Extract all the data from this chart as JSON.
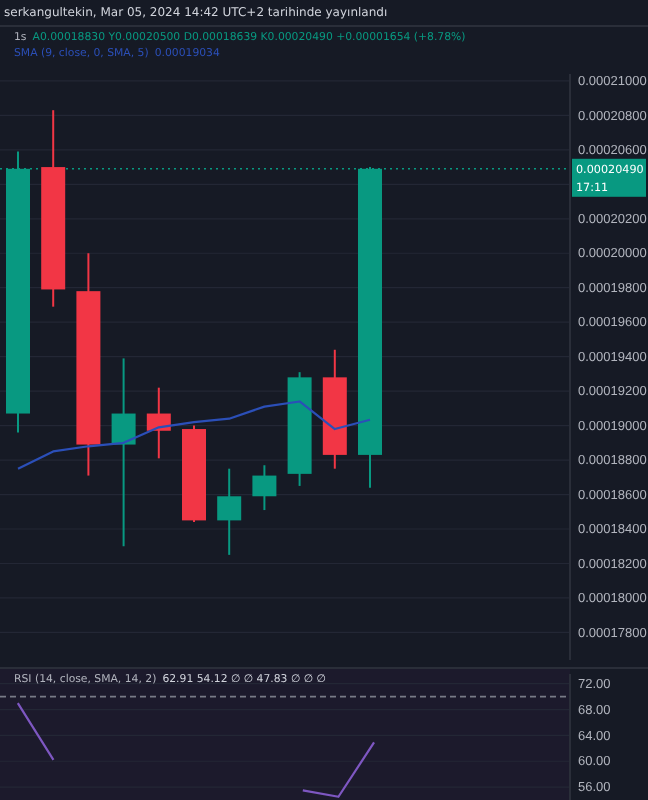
{
  "chart_data": [
    {
      "type": "candlestick",
      "title": "1s",
      "annotations": [
        "serkangultekin, Mar 05, 2024 14:42 UTC+2 tarihinde yayınlandı",
        "A0.00018830 Y0.00020500 D0.00018639 K0.00020490 +0.00001654 (+8.78%)",
        "17:11",
        "0.00019034"
      ],
      "categories": [
        null,
        null,
        null,
        null,
        null,
        null,
        null,
        null,
        null,
        null,
        null
      ],
      "ohlc": [
        [
          0.0001907,
          0.0002059,
          0.0001896,
          0.0002049
        ],
        [
          0.000205,
          0.0002083,
          0.0001969,
          0.0001979
        ],
        [
          0.0001978,
          0.0002,
          0.0001871,
          0.0001889
        ],
        [
          0.0001889,
          0.0001939,
          0.000183,
          0.0001907
        ],
        [
          0.0001907,
          0.0001922,
          0.0001881,
          0.0001897
        ],
        [
          0.0001898,
          0.00019,
          0.0001844,
          0.0001845
        ],
        [
          0.0001845,
          0.0001875,
          0.0001825,
          0.0001859
        ],
        [
          0.0001859,
          0.0001877,
          0.0001851,
          0.0001871
        ],
        [
          0.0001872,
          0.0001931,
          0.0001865,
          0.0001928
        ],
        [
          0.0001928,
          0.0001944,
          0.0001875,
          0.0001883
        ],
        [
          0.0001883,
          0.000205,
          0.00018639,
          0.0002049
        ]
      ],
      "colors": [
        "#089981",
        "#f23645",
        "#f23645",
        "#089981",
        "#f23645",
        "#f23645",
        "#089981",
        "#089981",
        "#089981",
        "#f23645",
        "#089981"
      ],
      "series": [
        {
          "type": "line",
          "name": "SMA (9, close, 0, SMA, 5)",
          "color": "#2b4fb8",
          "values": [
            0.0001875,
            0.0001885,
            0.0001888,
            0.000189,
            0.0001899,
            0.0001902,
            0.0001904,
            0.0001911,
            0.0001914,
            0.0001898,
            0.00019034
          ]
        }
      ],
      "ylim": [
        0.0001764,
        0.0002104
      ],
      "yticks": [
        {
          "value": 0.000178,
          "label": "0.00017800"
        },
        {
          "value": 0.00018,
          "label": "0.00018000"
        },
        {
          "value": 0.000182,
          "label": "0.00018200"
        },
        {
          "value": 0.000184,
          "label": "0.00018400"
        },
        {
          "value": 0.000186,
          "label": "0.00018600"
        },
        {
          "value": 0.000188,
          "label": "0.00018800"
        },
        {
          "value": 0.00019,
          "label": "0.00019000"
        },
        {
          "value": 0.000192,
          "label": "0.00019200"
        },
        {
          "value": 0.000194,
          "label": "0.00019400"
        },
        {
          "value": 0.000196,
          "label": "0.00019600"
        },
        {
          "value": 0.000198,
          "label": "0.00019800"
        },
        {
          "value": 0.0002,
          "label": "0.00020000"
        },
        {
          "value": 0.000202,
          "label": "0.00020200"
        },
        {
          "value": 0.000204,
          "label": null
        },
        {
          "value": 0.000206,
          "label": "0.00020600"
        },
        {
          "value": 0.000208,
          "label": "0.00020800"
        },
        {
          "value": 0.00021,
          "label": "0.00021000"
        }
      ],
      "ref_lines": [
        {
          "axis": "y",
          "value": 0.0002049,
          "label": "0.00020490",
          "color": "#089981",
          "line_style": "dotted"
        }
      ],
      "grid": "y",
      "tick_labels": "y"
    },
    {
      "type": "line",
      "title": "RSI (14, close, SMA, 14, 2)",
      "annotations": [
        "62.91 54.12 ∅ ∅ 47.83 ∅ ∅ ∅"
      ],
      "categories": [
        null,
        null,
        null,
        null,
        null,
        null,
        null,
        null,
        null,
        null,
        null,
        null,
        null,
        null,
        null,
        null
      ],
      "series": [
        {
          "color": "#7e57c2",
          "values": [
            69,
            60.2,
            null,
            null,
            null,
            null,
            null,
            null,
            55.5,
            54.5,
            62.91,
            null,
            null,
            null,
            null,
            null
          ]
        }
      ],
      "ylim": [
        54,
        73.5
      ],
      "yticks": [
        {
          "value": 56,
          "label": "56.00"
        },
        {
          "value": 60,
          "label": "60.00"
        },
        {
          "value": 64,
          "label": "64.00"
        },
        {
          "value": 68,
          "label": "68.00"
        },
        {
          "value": 72,
          "label": "72.00"
        }
      ],
      "ref_lines": [
        {
          "axis": "y",
          "value": 70,
          "color": "#787b86",
          "line_style": "dashed"
        }
      ],
      "grid": "y",
      "tick_labels": "y"
    }
  ]
}
